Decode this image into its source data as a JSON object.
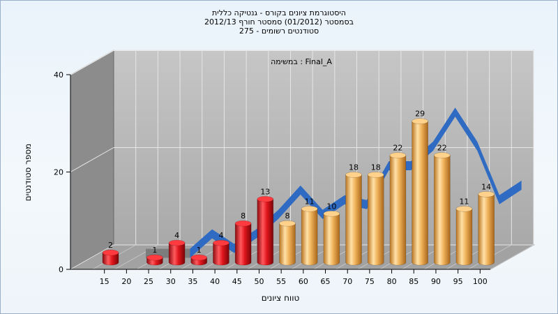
{
  "chart_data": {
    "type": "bar",
    "title_lines": [
      "היסטוגרמת ציונים בקורס - גנטיקה כללית",
      "בסמסטר  (01/2012)  סמסטר חורף 2012/13",
      "סטודנטים רשומים - 275"
    ],
    "annotation": "במשימה : Final_A",
    "xlabel": "טווח ציונים",
    "ylabel": "מספר סטודנטים",
    "x_ticks": [
      "15",
      "20",
      "25",
      "30",
      "35",
      "40",
      "45",
      "50",
      "55",
      "60",
      "65",
      "70",
      "75",
      "80",
      "85",
      "90",
      "95",
      "100"
    ],
    "y_ticks": [
      "0",
      "20",
      "40"
    ],
    "ylim": [
      0,
      40
    ],
    "bars": [
      {
        "x": 17.5,
        "value": 2,
        "group": "fail"
      },
      {
        "x": 27.5,
        "value": 1,
        "group": "fail"
      },
      {
        "x": 32.5,
        "value": 4,
        "group": "fail"
      },
      {
        "x": 37.5,
        "value": 1,
        "group": "fail"
      },
      {
        "x": 42.5,
        "value": 4,
        "group": "fail"
      },
      {
        "x": 47.5,
        "value": 8,
        "group": "fail"
      },
      {
        "x": 52.5,
        "value": 13,
        "group": "fail"
      },
      {
        "x": 57.5,
        "value": 8,
        "group": "pass"
      },
      {
        "x": 62.5,
        "value": 11,
        "group": "pass"
      },
      {
        "x": 67.5,
        "value": 10,
        "group": "pass"
      },
      {
        "x": 72.5,
        "value": 18,
        "group": "pass"
      },
      {
        "x": 77.5,
        "value": 18,
        "group": "pass"
      },
      {
        "x": 82.5,
        "value": 22,
        "group": "pass"
      },
      {
        "x": 87.5,
        "value": 29,
        "group": "pass"
      },
      {
        "x": 92.5,
        "value": 22,
        "group": "pass"
      },
      {
        "x": 97.5,
        "value": 11,
        "group": "pass"
      },
      {
        "x": 102.5,
        "value": 14,
        "group": "pass"
      }
    ],
    "trend": [
      {
        "x": 20,
        "value": 0
      },
      {
        "x": 25,
        "value": 0
      },
      {
        "x": 30,
        "value": 0
      },
      {
        "x": 35,
        "value": 4
      },
      {
        "x": 40,
        "value": 1
      },
      {
        "x": 45,
        "value": 4
      },
      {
        "x": 50,
        "value": 8
      },
      {
        "x": 55,
        "value": 13
      },
      {
        "x": 60,
        "value": 8
      },
      {
        "x": 65,
        "value": 11
      },
      {
        "x": 70,
        "value": 10
      },
      {
        "x": 75,
        "value": 18
      },
      {
        "x": 80,
        "value": 18
      },
      {
        "x": 85,
        "value": 22
      },
      {
        "x": 90,
        "value": 29
      },
      {
        "x": 95,
        "value": 22
      },
      {
        "x": 100,
        "value": 11
      },
      {
        "x": 105,
        "value": 14
      }
    ],
    "colors": {
      "fail": "#e0161c",
      "pass": "#f0b25a",
      "trend": "#2f6bc2",
      "back_wall": "#b5b5b5",
      "side_wall": "#8a8a8a",
      "floor": "#9a9a9a"
    },
    "grid": true
  }
}
